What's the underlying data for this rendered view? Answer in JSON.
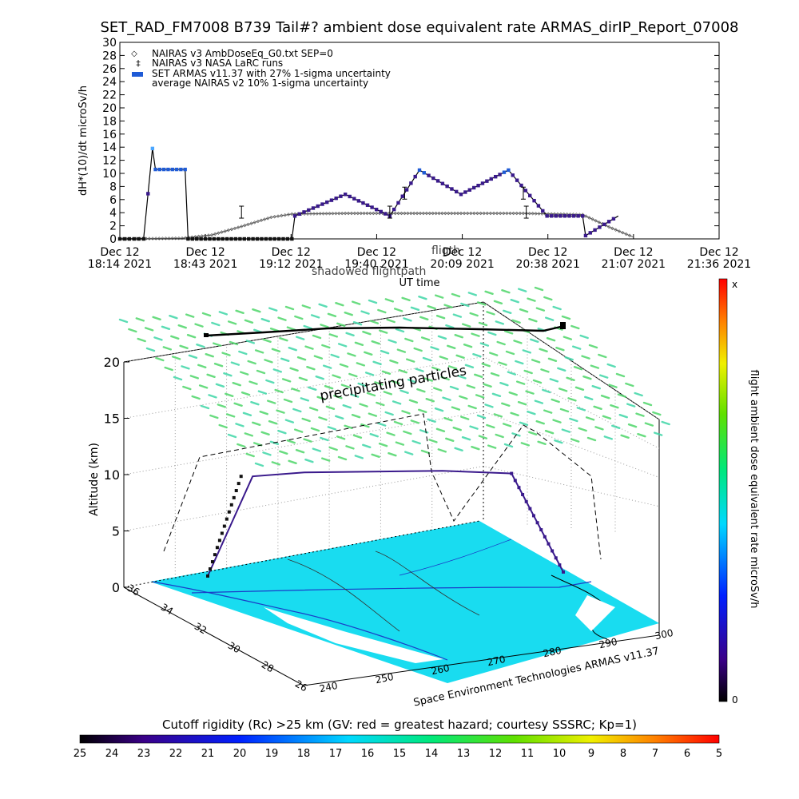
{
  "title": "SET_RAD_FM7008  B739 Tail#? ambient dose equivalent rate ARMAS_dirIP_Report_07008",
  "top_chart": {
    "ylabel": "dH*(10)/dt microSv/h",
    "xlabel": "UT time",
    "legend": [
      {
        "symbol": "◇",
        "text": "NAIRAS v3 AmbDoseEq_G0.txt SEP=0"
      },
      {
        "symbol": "‡",
        "text": "NAIRAS v3 NASA LaRC runs"
      },
      {
        "symbol": "▬",
        "text": "SET ARMAS v11.37 with 27% 1-sigma uncertainty"
      },
      {
        "symbol": "",
        "text": "average NAIRAS v2 10% 1-sigma uncertainty"
      }
    ],
    "y_ticks": [
      "0",
      "2",
      "4",
      "6",
      "8",
      "10",
      "12",
      "14",
      "16",
      "18",
      "20",
      "22",
      "24",
      "26",
      "28",
      "30"
    ],
    "x_ticks": [
      {
        "line1": "Dec 12",
        "line2": "18:14 2021"
      },
      {
        "line1": "Dec 12",
        "line2": "18:43 2021"
      },
      {
        "line1": "Dec 12",
        "line2": "19:12 2021"
      },
      {
        "line1": "Dec 12",
        "line2": "19:40 2021"
      },
      {
        "line1": "Dec 12",
        "line2": "20:09 2021"
      },
      {
        "line1": "Dec 12",
        "line2": "20:38 2021"
      },
      {
        "line1": "Dec 12",
        "line2": "21:07 2021"
      },
      {
        "line1": "Dec 12",
        "line2": "21:36 2021"
      }
    ],
    "overlay_labels": [
      "shadowed flightpath",
      "fligth"
    ]
  },
  "chart_data": [
    {
      "type": "line",
      "title": "SET_RAD_FM7008  B739 Tail#? ambient dose equivalent rate ARMAS_dirIP_Report_07008",
      "xlabel": "UT time",
      "ylabel": "dH*(10)/dt microSv/h",
      "xlim": [
        "18:14",
        "21:36"
      ],
      "ylim": [
        0,
        30
      ],
      "series": [
        {
          "name": "NAIRAS v3 AmbDoseEq_G0.txt SEP=0",
          "x": [
            "18:14",
            "18:35",
            "18:45",
            "18:55",
            "19:05",
            "19:12",
            "19:30",
            "19:50",
            "20:09",
            "20:30",
            "20:50",
            "21:00",
            "21:07"
          ],
          "y": [
            0.0,
            0.1,
            0.6,
            1.9,
            3.3,
            3.8,
            3.9,
            3.9,
            3.9,
            3.9,
            3.7,
            1.6,
            0.3
          ]
        },
        {
          "name": "SET ARMAS v11.37 with 27% 1-sigma uncertainty",
          "x": [
            "18:14",
            "18:22",
            "18:25",
            "18:26",
            "18:36",
            "18:37",
            "19:12",
            "19:13",
            "19:30",
            "19:45",
            "19:55",
            "20:09",
            "20:25",
            "20:38",
            "20:50",
            "20:51",
            "21:02"
          ],
          "y": [
            0.0,
            0.0,
            13.8,
            10.6,
            10.6,
            0.0,
            0.0,
            3.5,
            6.8,
            3.5,
            10.5,
            6.8,
            10.5,
            3.5,
            3.5,
            0.5,
            3.5
          ]
        }
      ]
    },
    {
      "type": "scatter",
      "title": "",
      "zlabel": "Altitude (km)",
      "z_ticks": [
        "0",
        "5",
        "10",
        "15",
        "20"
      ],
      "lat_ticks": [
        "36",
        "34",
        "32",
        "30",
        "28",
        "26"
      ],
      "lon_ticks": [
        "240",
        "250",
        "260",
        "270",
        "280",
        "290",
        "300"
      ],
      "annotation": "precipitating particles",
      "credit": "Space Environment Technologies ARMAS v11.37",
      "flight_path": {
        "x": [
          "19:12",
          "19:25",
          "19:40",
          "20:00",
          "20:20",
          "20:40",
          "20:55"
        ],
        "altitude_km": [
          1.0,
          9.8,
          10.1,
          10.1,
          10.1,
          9.8,
          1.0
        ]
      }
    }
  ],
  "right_colorbar": {
    "label": "flight ambient dose equivalent rate microSv/h",
    "top_label": "x",
    "bottom_label": "0"
  },
  "bottom_colorbar": {
    "title": "Cutoff rigidity (Rc) >25 km (GV: red = greatest hazard; courtesy SSSRC; Kp=1)",
    "ticks": [
      "25",
      "24",
      "23",
      "22",
      "21",
      "20",
      "19",
      "18",
      "17",
      "16",
      "15",
      "14",
      "13",
      "12",
      "11",
      "10",
      "9",
      "8",
      "7",
      "6",
      "5"
    ]
  },
  "colors": {
    "nairas": "#555555",
    "armas_low": "#3a1a8c",
    "armas_mid": "#1f5bd6",
    "armas_high": "#4aa6ff",
    "particles": "#4fd66a",
    "cutoff_map": "#19dcf0",
    "coast": "#1a3cc8"
  }
}
